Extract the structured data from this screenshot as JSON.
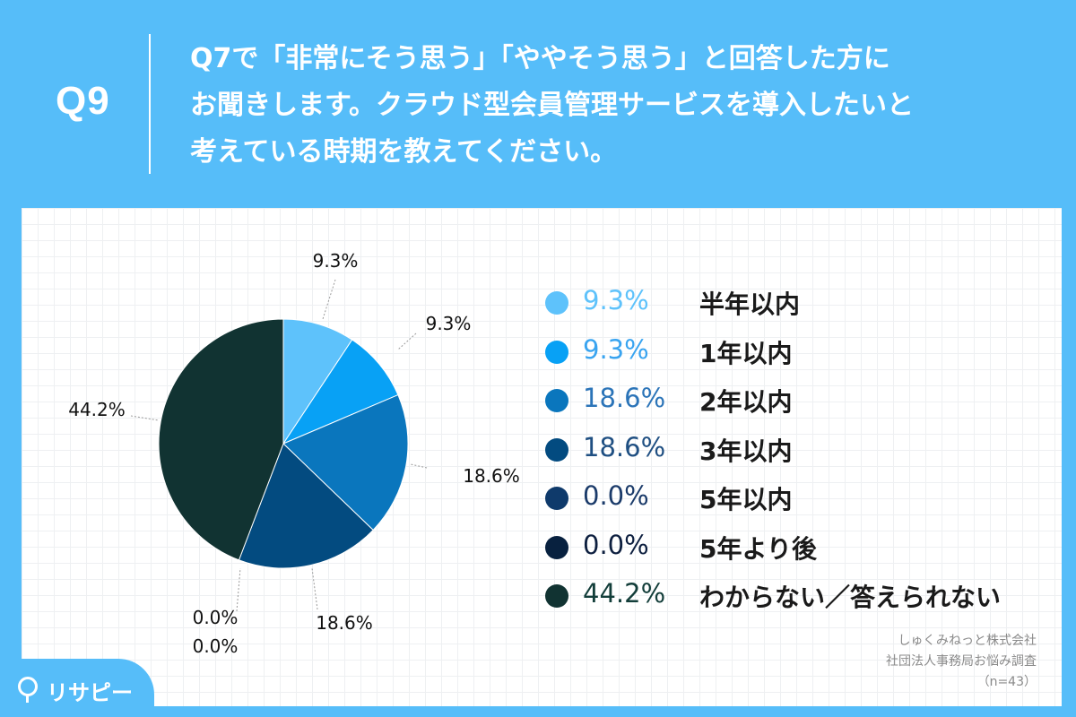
{
  "header": {
    "q_label": "Q9",
    "question_lines": [
      "Q7で「非常にそう思う」「ややそう思う」と回答した方に",
      "お聞きします。クラウド型会員管理サービスを導入したいと",
      "考えている時期を教えてください。"
    ]
  },
  "chart_data": {
    "type": "pie",
    "categories": [
      "半年以内",
      "1年以内",
      "2年以内",
      "3年以内",
      "5年以内",
      "5年より後",
      "わからない／答えられない"
    ],
    "values": [
      9.3,
      9.3,
      18.6,
      18.6,
      0.0,
      0.0,
      44.2
    ],
    "labels": [
      "9.3%",
      "9.3%",
      "18.6%",
      "18.6%",
      "0.0%",
      "0.0%",
      "44.2%"
    ],
    "colors": [
      "#5ec2fb",
      "#08a1f5",
      "#0a76bd",
      "#034b80",
      "#0f3a6b",
      "#08213f",
      "#113332"
    ],
    "legend_position": "right"
  },
  "legend": {
    "pct_colors": [
      "#5ec2fb",
      "#39a4f0",
      "#2b74b8",
      "#1f4f82",
      "#1b3b6a",
      "#0d1f3f",
      "#133e3a"
    ]
  },
  "source": {
    "company": "しゅくみねっと株式会社",
    "survey": "社団法人事務局お悩み調査",
    "n": "（n=43）"
  },
  "logo": {
    "text": "リサピー"
  }
}
